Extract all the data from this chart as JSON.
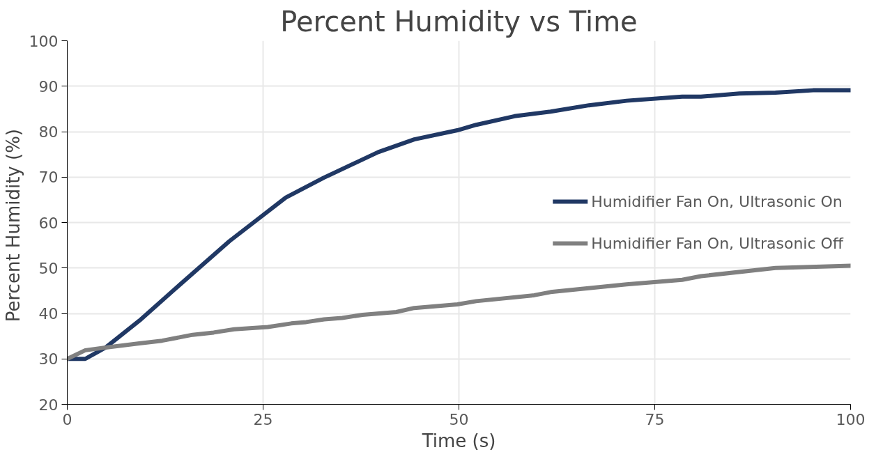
{
  "chart_data": {
    "type": "line",
    "title": "Percent Humidity vs Time",
    "xlabel": "Time (s)",
    "ylabel": "Percent Humidity  (%)",
    "xlim": [
      0,
      100
    ],
    "ylim": [
      20,
      100
    ],
    "xticks": [
      0,
      25,
      50,
      75,
      100
    ],
    "yticks": [
      20,
      30,
      40,
      50,
      60,
      70,
      80,
      90,
      100
    ],
    "grid": true,
    "legend": "right",
    "line_style": "solid",
    "marker": "none",
    "series": [
      {
        "name": "Humidifier Fan On, Ultrasonic On",
        "color": "#203864",
        "x": [
          0,
          2.3,
          4.9,
          9.2,
          14.1,
          20.7,
          27.9,
          32.8,
          39.7,
          44.3,
          49.8,
          52.2,
          57.1,
          61.7,
          66.6,
          71.4,
          78.5,
          80.9,
          85.8,
          90.4,
          95.2,
          100
        ],
        "values": [
          30,
          30,
          32.5,
          38.4,
          45.9,
          55.9,
          65.5,
          69.9,
          75.5,
          78.3,
          80.3,
          81.5,
          83.4,
          84.4,
          85.8,
          86.8,
          87.7,
          87.7,
          88.4,
          88.6,
          89.1,
          89.1
        ]
      },
      {
        "name": "Humidifier Fan On, Ultrasonic Off",
        "color": "#808080",
        "x": [
          0,
          2.3,
          4.9,
          9.2,
          12.1,
          16.0,
          18.7,
          21.3,
          25.6,
          28.6,
          30.5,
          32.8,
          35.1,
          37.7,
          42.0,
          44.3,
          49.8,
          52.2,
          59.6,
          61.7,
          71.4,
          78.5,
          80.9,
          90.4,
          100
        ],
        "values": [
          30,
          31.9,
          32.5,
          33.4,
          34,
          35.3,
          35.8,
          36.5,
          37,
          37.8,
          38.1,
          38.7,
          39,
          39.7,
          40.3,
          41.2,
          42,
          42.7,
          44,
          44.7,
          46.4,
          47.4,
          48.2,
          50,
          50.5
        ]
      }
    ]
  }
}
